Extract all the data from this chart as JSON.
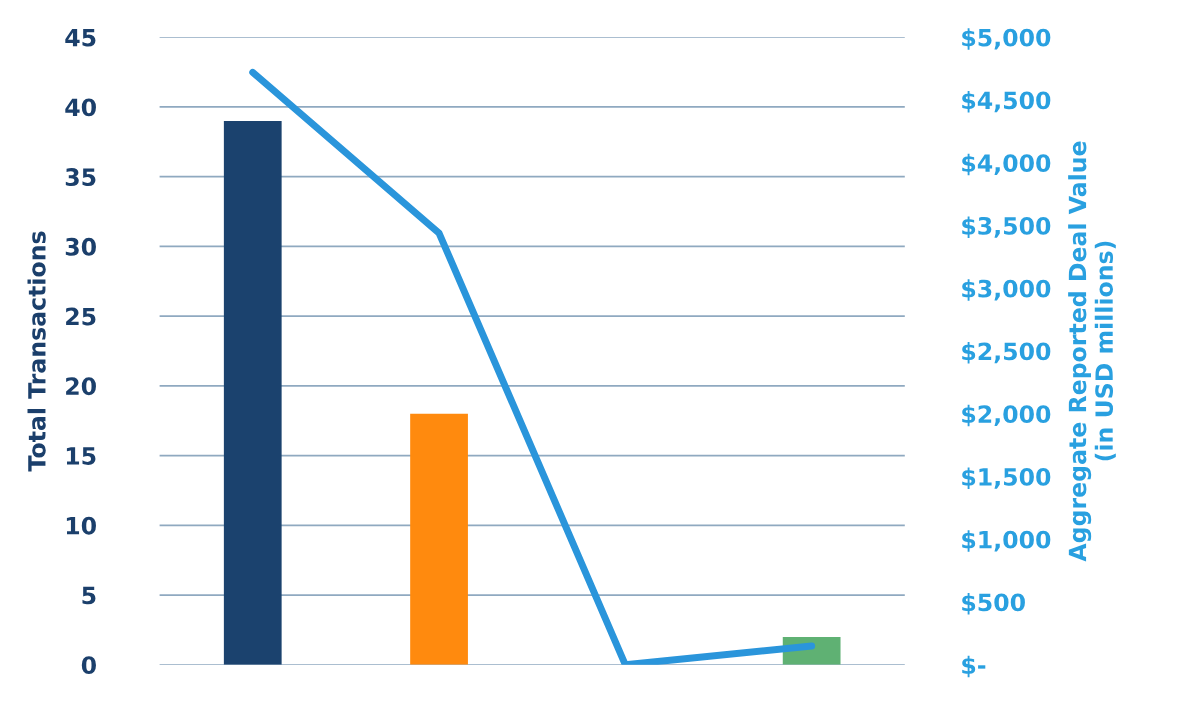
{
  "chart_data": {
    "type": "bar",
    "categories": [
      null,
      null,
      null,
      null
    ],
    "series": [
      {
        "colors": [
          "#1b426e",
          "#ff8a0e",
          "#5fb173",
          "#5fb173"
        ],
        "values": [
          39,
          18,
          0,
          2
        ]
      },
      {
        "type": "line",
        "axis": "y2",
        "color": "#2a95db",
        "values": [
          4720,
          3440,
          0,
          150
        ]
      }
    ],
    "ylabel": "Total Transactions",
    "y2label": "Aggregate Reported Deal Value\n(in USD millions)",
    "ylim": [
      0,
      45
    ],
    "yticks": [
      0,
      5,
      10,
      15,
      20,
      25,
      30,
      35,
      40,
      45
    ],
    "y2lim": [
      0,
      5000
    ],
    "y2ticks": [
      {
        "value": 0,
        "label": "$-"
      },
      {
        "value": 500,
        "label": "$500"
      },
      {
        "value": 1000,
        "label": "$1,000"
      },
      {
        "value": 1500,
        "label": "$1,500"
      },
      {
        "value": 2000,
        "label": "$2,000"
      },
      {
        "value": 2500,
        "label": "$2,500"
      },
      {
        "value": 3000,
        "label": "$3,000"
      },
      {
        "value": 3500,
        "label": "$3,500"
      },
      {
        "value": 4000,
        "label": "$4,000"
      },
      {
        "value": 4500,
        "label": "$4,500"
      },
      {
        "value": 5000,
        "label": "$5,000"
      }
    ],
    "grid": "y",
    "marker": "none",
    "line_style": "solid"
  }
}
